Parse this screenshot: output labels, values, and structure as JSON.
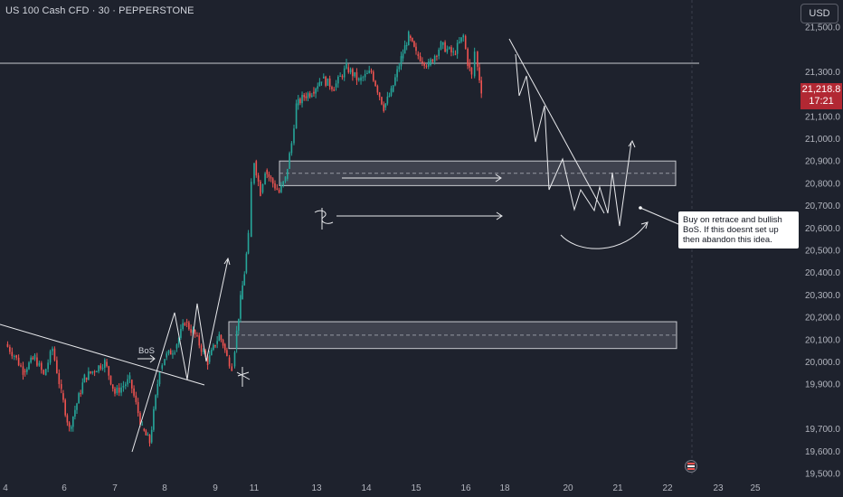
{
  "header": {
    "title": "US 100 Cash CFD · 30 · PEPPERSTONE",
    "currency_button": "USD"
  },
  "price_tag": {
    "price": "21,218.8",
    "countdown": "17:21"
  },
  "annotation": {
    "text": "Buy on retrace and bullish BoS. If this doesnt set up then abandon this idea.",
    "bos_label": "BoS"
  },
  "colors": {
    "background": "#1e222d",
    "up": "#26a69a",
    "down": "#ef5350",
    "drawing": "#ffffff",
    "price_tag": "#b22833"
  },
  "chart_data": {
    "type": "line",
    "title": "US 100 Cash CFD · 30 · PEPPERSTONE",
    "xlabel": "",
    "ylabel": "",
    "ylim": [
      19500,
      21600
    ],
    "y_ticks": [
      21500,
      21300,
      21100,
      21000,
      20900,
      20800,
      20700,
      20600,
      20500,
      20400,
      20300,
      20200,
      20100,
      20000,
      19900,
      19700,
      19600,
      19500
    ],
    "y_tick_labels": [
      "21,500.0",
      "21,300.0",
      "21,100.0",
      "21,000.0",
      "20,900.0",
      "20,800.0",
      "20,700.0",
      "20,600.0",
      "20,500.0",
      "20,400.0",
      "20,300.0",
      "20,200.0",
      "20,100.0",
      "20,000.0",
      "19,900.0",
      "19,700.0",
      "19,600.0",
      "19,500.0"
    ],
    "x_ticks": [
      4,
      6,
      7,
      8,
      9,
      11,
      13,
      14,
      15,
      16,
      18,
      20,
      21,
      22,
      23,
      25
    ],
    "x_tick_labels": [
      "4",
      "6",
      "7",
      "8",
      "9",
      "11",
      "13",
      "14",
      "15",
      "16",
      "18",
      "20",
      "21",
      "22",
      "23",
      "25"
    ],
    "last_price": 21218.8,
    "series": [
      {
        "values": [
          [
            4,
            20080
          ],
          [
            4.3,
            20030
          ],
          [
            4.6,
            19960
          ],
          [
            5.0,
            20020
          ],
          [
            5.3,
            19940
          ],
          [
            5.6,
            20060
          ],
          [
            5.9,
            19860
          ],
          [
            6.1,
            19700
          ],
          [
            6.4,
            19930
          ],
          [
            6.8,
            20000
          ],
          [
            7.0,
            19860
          ],
          [
            7.3,
            19920
          ],
          [
            7.55,
            19700
          ],
          [
            7.7,
            19640
          ],
          [
            7.9,
            19970
          ],
          [
            8.0,
            20020
          ],
          [
            8.2,
            20060
          ],
          [
            8.4,
            20180
          ],
          [
            8.6,
            20120
          ],
          [
            8.85,
            20000
          ],
          [
            9.0,
            20080
          ],
          [
            9.2,
            20120
          ],
          [
            9.4,
            20080
          ],
          [
            9.6,
            20020
          ],
          [
            9.85,
            19980
          ],
          [
            10.0,
            20060
          ],
          [
            10.3,
            20280
          ],
          [
            10.5,
            20400
          ],
          [
            10.7,
            20560
          ],
          [
            10.85,
            20800
          ],
          [
            11.0,
            20900
          ],
          [
            11.2,
            20760
          ],
          [
            11.35,
            20860
          ],
          [
            11.6,
            20800
          ],
          [
            11.8,
            20760
          ],
          [
            12.0,
            20820
          ],
          [
            12.2,
            20980
          ],
          [
            12.35,
            21150
          ],
          [
            12.6,
            21190
          ],
          [
            12.85,
            21210
          ],
          [
            13.1,
            21270
          ],
          [
            13.35,
            21230
          ],
          [
            13.6,
            21320
          ],
          [
            13.85,
            21260
          ],
          [
            14.1,
            21300
          ],
          [
            14.35,
            21140
          ],
          [
            14.5,
            21210
          ],
          [
            14.7,
            21360
          ],
          [
            14.85,
            21460
          ],
          [
            15.0,
            21380
          ],
          [
            15.25,
            21330
          ],
          [
            15.5,
            21420
          ],
          [
            15.75,
            21380
          ],
          [
            15.95,
            21460
          ],
          [
            16.1,
            21340
          ],
          [
            16.3,
            21280
          ],
          [
            16.45,
            21390
          ],
          [
            16.6,
            21320
          ],
          [
            16.8,
            21218.8
          ]
        ]
      }
    ],
    "zones": [
      {
        "low": 20790,
        "high": 20900,
        "label": ""
      },
      {
        "low": 20060,
        "high": 20180,
        "label": ""
      }
    ],
    "horizontal_lines": [
      21330
    ]
  }
}
